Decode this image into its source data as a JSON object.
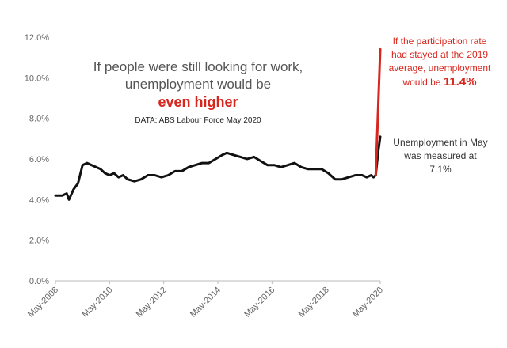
{
  "chart_data": {
    "type": "line",
    "title": "",
    "xlabel": "",
    "ylabel": "",
    "ylim": [
      0,
      12
    ],
    "y_ticks": [
      "0.0%",
      "2.0%",
      "4.0%",
      "6.0%",
      "8.0%",
      "10.0%",
      "12.0%"
    ],
    "x_ticks": [
      "May-2008",
      "May-2010",
      "May-2012",
      "May-2014",
      "May-2016",
      "May-2018",
      "May-2020"
    ],
    "x_range": [
      "May-2008",
      "May-2020"
    ],
    "grid": false,
    "legend": "none",
    "series": [
      {
        "color": "#111111",
        "points": [
          [
            "May-2008",
            4.2
          ],
          [
            "Aug-2008",
            4.2
          ],
          [
            "Oct-2008",
            4.3
          ],
          [
            "Nov-2008",
            4.0
          ],
          [
            "Jan-2009",
            4.5
          ],
          [
            "Mar-2009",
            4.8
          ],
          [
            "May-2009",
            5.7
          ],
          [
            "Jul-2009",
            5.8
          ],
          [
            "Sep-2009",
            5.7
          ],
          [
            "Nov-2009",
            5.6
          ],
          [
            "Jan-2010",
            5.5
          ],
          [
            "Mar-2010",
            5.3
          ],
          [
            "May-2010",
            5.2
          ],
          [
            "Jul-2010",
            5.3
          ],
          [
            "Sep-2010",
            5.1
          ],
          [
            "Nov-2010",
            5.2
          ],
          [
            "Jan-2011",
            5.0
          ],
          [
            "Apr-2011",
            4.9
          ],
          [
            "Jul-2011",
            5.0
          ],
          [
            "Oct-2011",
            5.2
          ],
          [
            "Jan-2012",
            5.2
          ],
          [
            "Apr-2012",
            5.1
          ],
          [
            "Jul-2012",
            5.2
          ],
          [
            "Oct-2012",
            5.4
          ],
          [
            "Jan-2013",
            5.4
          ],
          [
            "Apr-2013",
            5.6
          ],
          [
            "Jul-2013",
            5.7
          ],
          [
            "Oct-2013",
            5.8
          ],
          [
            "Jan-2014",
            5.8
          ],
          [
            "Apr-2014",
            6.0
          ],
          [
            "Jul-2014",
            6.2
          ],
          [
            "Sep-2014",
            6.3
          ],
          [
            "Dec-2014",
            6.2
          ],
          [
            "Mar-2015",
            6.1
          ],
          [
            "Jun-2015",
            6.0
          ],
          [
            "Sep-2015",
            6.1
          ],
          [
            "Dec-2015",
            5.9
          ],
          [
            "Mar-2016",
            5.7
          ],
          [
            "Jun-2016",
            5.7
          ],
          [
            "Sep-2016",
            5.6
          ],
          [
            "Dec-2016",
            5.7
          ],
          [
            "Mar-2017",
            5.8
          ],
          [
            "Jun-2017",
            5.6
          ],
          [
            "Sep-2017",
            5.5
          ],
          [
            "Dec-2017",
            5.5
          ],
          [
            "Mar-2018",
            5.5
          ],
          [
            "Jun-2018",
            5.3
          ],
          [
            "Sep-2018",
            5.0
          ],
          [
            "Dec-2018",
            5.0
          ],
          [
            "Mar-2019",
            5.1
          ],
          [
            "Jun-2019",
            5.2
          ],
          [
            "Sep-2019",
            5.2
          ],
          [
            "Nov-2019",
            5.1
          ],
          [
            "Jan-2020",
            5.2
          ],
          [
            "Feb-2020",
            5.1
          ],
          [
            "Mar-2020",
            5.2
          ],
          [
            "Apr-2020",
            6.3
          ],
          [
            "May-2020",
            7.1
          ]
        ]
      },
      {
        "color": "#d7261e",
        "points": [
          [
            "Mar-2020",
            5.2
          ],
          [
            "May-2020",
            11.4
          ]
        ]
      }
    ],
    "annotations": {
      "main": {
        "line1": "If people were still looking for work,",
        "line2": "unemployment would be",
        "emphasis": "even higher",
        "source": "DATA: ABS Labour Force May 2020"
      },
      "participation": {
        "text": "If the participation rate had stayed at the 2019 average, unemployment would be",
        "value": "11.4%",
        "color": "#d7261e"
      },
      "measured": {
        "text": "Unemployment in May was measured at 7.1%"
      }
    }
  }
}
